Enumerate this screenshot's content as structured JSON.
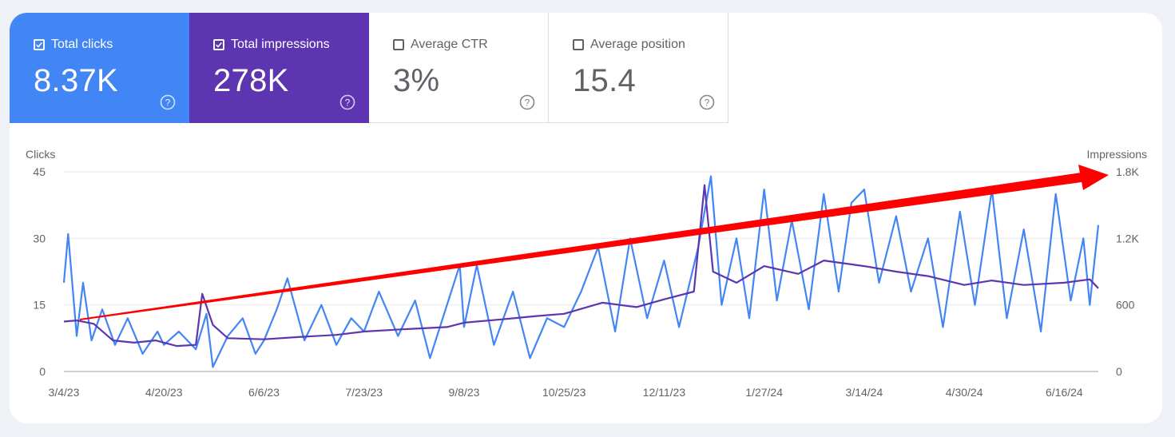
{
  "metrics": [
    {
      "label": "Total clicks",
      "value": "8.37K",
      "checked": true
    },
    {
      "label": "Total impressions",
      "value": "278K",
      "checked": true
    },
    {
      "label": "Average CTR",
      "value": "3%",
      "checked": false
    },
    {
      "label": "Average position",
      "value": "15.4",
      "checked": false
    }
  ],
  "icons": {
    "checkbox": "checkbox-icon",
    "help": "help-circle-icon"
  },
  "colors": {
    "clicks": "#4285f4",
    "impressions": "#5e35b1",
    "annotation_arrow": "#ff0000"
  },
  "chart_data": {
    "type": "line",
    "ylabel_left": "Clicks",
    "ylabel_right": "Impressions",
    "yticks_left": [
      "0",
      "15",
      "30",
      "45"
    ],
    "yticks_right": [
      "0",
      "600",
      "1.2K",
      "1.8K"
    ],
    "ylim_left": [
      0,
      45
    ],
    "ylim_right": [
      0,
      1800
    ],
    "xticks": [
      "3/4/23",
      "4/20/23",
      "6/6/23",
      "7/23/23",
      "9/8/23",
      "10/25/23",
      "12/11/23",
      "1/27/24",
      "3/14/24",
      "4/30/24",
      "6/16/24"
    ],
    "x_start": "2023-03-04",
    "x_end": "2024-07-02",
    "grid": true,
    "series": [
      {
        "name": "Clicks",
        "axis": "left",
        "points": [
          [
            "2023-03-04",
            20
          ],
          [
            "2023-03-06",
            31
          ],
          [
            "2023-03-10",
            8
          ],
          [
            "2023-03-13",
            20
          ],
          [
            "2023-03-17",
            7
          ],
          [
            "2023-03-22",
            14
          ],
          [
            "2023-03-28",
            6
          ],
          [
            "2023-04-03",
            12
          ],
          [
            "2023-04-10",
            4
          ],
          [
            "2023-04-17",
            9
          ],
          [
            "2023-04-20",
            6
          ],
          [
            "2023-04-27",
            9
          ],
          [
            "2023-05-05",
            5
          ],
          [
            "2023-05-10",
            13
          ],
          [
            "2023-05-13",
            1
          ],
          [
            "2023-05-20",
            8
          ],
          [
            "2023-05-27",
            12
          ],
          [
            "2023-06-02",
            4
          ],
          [
            "2023-06-06",
            7
          ],
          [
            "2023-06-12",
            14
          ],
          [
            "2023-06-17",
            21
          ],
          [
            "2023-06-25",
            7
          ],
          [
            "2023-07-03",
            15
          ],
          [
            "2023-07-10",
            6
          ],
          [
            "2023-07-17",
            12
          ],
          [
            "2023-07-23",
            9
          ],
          [
            "2023-07-30",
            18
          ],
          [
            "2023-08-08",
            8
          ],
          [
            "2023-08-16",
            16
          ],
          [
            "2023-08-23",
            3
          ],
          [
            "2023-08-31",
            15
          ],
          [
            "2023-09-06",
            24
          ],
          [
            "2023-09-08",
            10
          ],
          [
            "2023-09-14",
            24
          ],
          [
            "2023-09-22",
            6
          ],
          [
            "2023-10-01",
            18
          ],
          [
            "2023-10-09",
            3
          ],
          [
            "2023-10-17",
            12
          ],
          [
            "2023-10-25",
            10
          ],
          [
            "2023-11-02",
            18
          ],
          [
            "2023-11-10",
            28
          ],
          [
            "2023-11-18",
            9
          ],
          [
            "2023-11-25",
            30
          ],
          [
            "2023-12-03",
            12
          ],
          [
            "2023-12-11",
            25
          ],
          [
            "2023-12-18",
            10
          ],
          [
            "2023-12-27",
            28
          ],
          [
            "2024-01-02",
            44
          ],
          [
            "2024-01-07",
            15
          ],
          [
            "2024-01-14",
            30
          ],
          [
            "2024-01-20",
            12
          ],
          [
            "2024-01-27",
            41
          ],
          [
            "2024-02-02",
            16
          ],
          [
            "2024-02-09",
            34
          ],
          [
            "2024-02-17",
            14
          ],
          [
            "2024-02-24",
            40
          ],
          [
            "2024-03-02",
            18
          ],
          [
            "2024-03-08",
            38
          ],
          [
            "2024-03-14",
            41
          ],
          [
            "2024-03-21",
            20
          ],
          [
            "2024-03-29",
            35
          ],
          [
            "2024-04-05",
            18
          ],
          [
            "2024-04-13",
            30
          ],
          [
            "2024-04-20",
            10
          ],
          [
            "2024-04-28",
            36
          ],
          [
            "2024-05-05",
            15
          ],
          [
            "2024-05-13",
            41
          ],
          [
            "2024-05-20",
            12
          ],
          [
            "2024-05-28",
            32
          ],
          [
            "2024-06-05",
            9
          ],
          [
            "2024-06-12",
            40
          ],
          [
            "2024-06-19",
            16
          ],
          [
            "2024-06-25",
            30
          ],
          [
            "2024-06-28",
            15
          ],
          [
            "2024-07-02",
            33
          ]
        ]
      },
      {
        "name": "Impressions",
        "axis": "right",
        "points": [
          [
            "2023-03-04",
            450
          ],
          [
            "2023-03-10",
            460
          ],
          [
            "2023-03-18",
            430
          ],
          [
            "2023-03-27",
            280
          ],
          [
            "2023-04-06",
            260
          ],
          [
            "2023-04-16",
            280
          ],
          [
            "2023-04-26",
            230
          ],
          [
            "2023-05-05",
            240
          ],
          [
            "2023-05-08",
            700
          ],
          [
            "2023-05-13",
            420
          ],
          [
            "2023-05-20",
            300
          ],
          [
            "2023-06-06",
            290
          ],
          [
            "2023-06-22",
            310
          ],
          [
            "2023-07-10",
            330
          ],
          [
            "2023-07-23",
            360
          ],
          [
            "2023-08-10",
            380
          ],
          [
            "2023-08-31",
            400
          ],
          [
            "2023-09-08",
            440
          ],
          [
            "2023-09-26",
            470
          ],
          [
            "2023-10-12",
            500
          ],
          [
            "2023-10-25",
            520
          ],
          [
            "2023-11-12",
            620
          ],
          [
            "2023-11-28",
            580
          ],
          [
            "2023-12-11",
            650
          ],
          [
            "2023-12-25",
            720
          ],
          [
            "2023-12-30",
            1680
          ],
          [
            "2024-01-03",
            900
          ],
          [
            "2024-01-14",
            800
          ],
          [
            "2024-01-27",
            950
          ],
          [
            "2024-02-12",
            880
          ],
          [
            "2024-02-24",
            1000
          ],
          [
            "2024-03-14",
            950
          ],
          [
            "2024-03-29",
            900
          ],
          [
            "2024-04-13",
            860
          ],
          [
            "2024-04-30",
            780
          ],
          [
            "2024-05-13",
            820
          ],
          [
            "2024-05-28",
            780
          ],
          [
            "2024-06-16",
            800
          ],
          [
            "2024-06-28",
            830
          ],
          [
            "2024-07-02",
            750
          ]
        ]
      }
    ]
  }
}
